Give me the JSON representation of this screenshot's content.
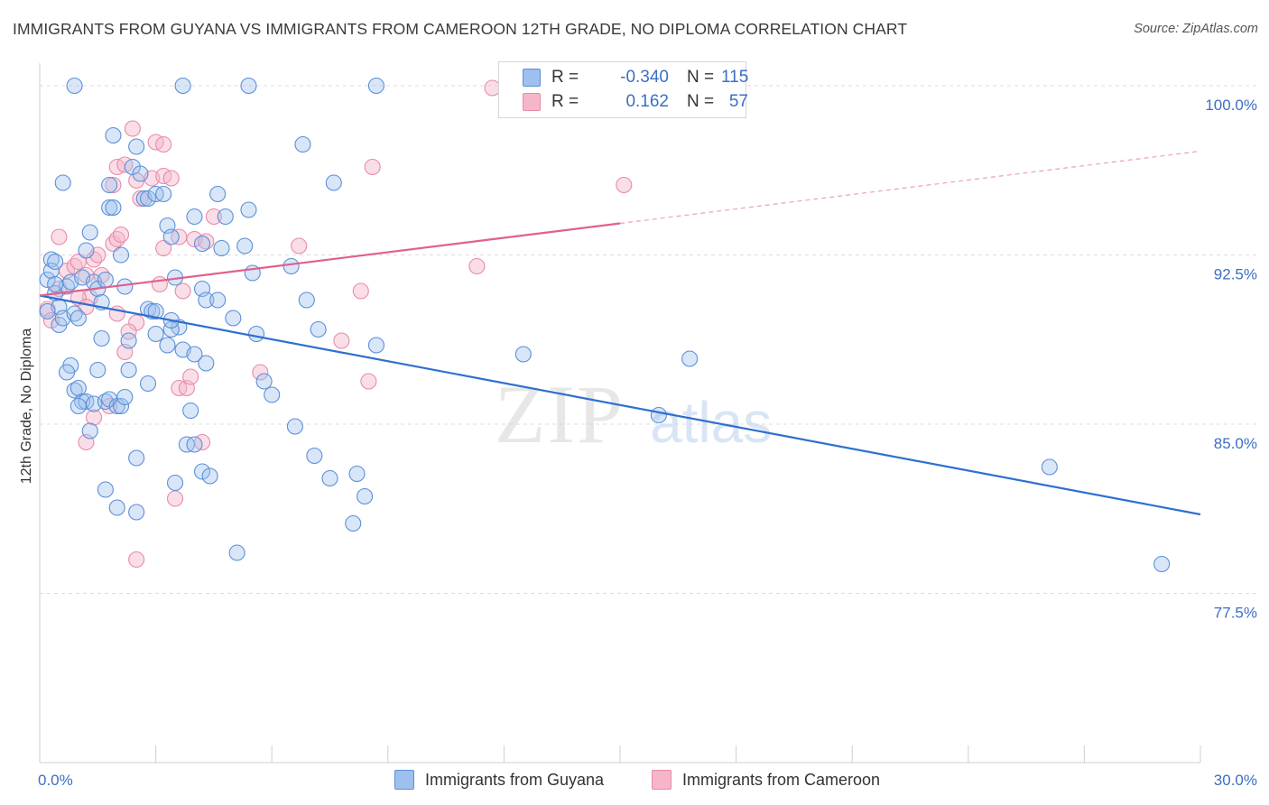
{
  "title": "IMMIGRANTS FROM GUYANA VS IMMIGRANTS FROM CAMEROON 12TH GRADE, NO DIPLOMA CORRELATION CHART",
  "source": "Source: ZipAtlas.com",
  "watermark": {
    "zip": "ZIP",
    "atlas": "atlas"
  },
  "colors": {
    "guyana_fill": "#9ec0ee",
    "guyana_stroke": "#5b8fd8",
    "guyana_line": "#2f6fcf",
    "cameroon_fill": "#f5b6c9",
    "cameroon_stroke": "#e98aa8",
    "cameroon_line": "#e0608a",
    "axis_text": "#3b6fc5",
    "grid": "#dcdcdc"
  },
  "legend": {
    "rows": [
      {
        "r_label": "R =",
        "r_value": "-0.340",
        "n_label": "N =",
        "n_value": "115"
      },
      {
        "r_label": "R =",
        "r_value": "0.162",
        "n_label": "N =",
        "n_value": "57"
      }
    ]
  },
  "bottom_legend": [
    "Immigrants from Guyana",
    "Immigrants from Cameroon"
  ],
  "chart_data": {
    "type": "scatter",
    "title": "IMMIGRANTS FROM GUYANA VS IMMIGRANTS FROM CAMEROON 12TH GRADE, NO DIPLOMA CORRELATION CHART",
    "xlabel": "",
    "ylabel": "12th Grade, No Diploma",
    "xlim": [
      0,
      30
    ],
    "ylim": [
      70,
      101
    ],
    "x_tick_labels": [
      "0.0%",
      "30.0%"
    ],
    "y_ticks": [
      77.5,
      85.0,
      92.5,
      100.0
    ],
    "y_tick_labels": [
      "77.5%",
      "85.0%",
      "92.5%",
      "100.0%"
    ],
    "grid": true,
    "legend_position": "top-center",
    "series": [
      {
        "name": "Immigrants from Guyana",
        "r": -0.34,
        "n": 115,
        "trend": {
          "x": [
            0,
            30
          ],
          "y": [
            90.7,
            81.0
          ]
        },
        "points": [
          [
            0.2,
            91.4
          ],
          [
            0.3,
            92.3
          ],
          [
            0.4,
            90.8
          ],
          [
            0.5,
            89.4
          ],
          [
            0.5,
            90.2
          ],
          [
            0.6,
            89.7
          ],
          [
            0.7,
            91.1
          ],
          [
            0.8,
            91.3
          ],
          [
            0.9,
            89.9
          ],
          [
            1.0,
            89.7
          ],
          [
            0.3,
            91.8
          ],
          [
            0.4,
            92.2
          ],
          [
            1.1,
            91.5
          ],
          [
            1.2,
            92.7
          ],
          [
            1.3,
            93.5
          ],
          [
            1.4,
            91.3
          ],
          [
            1.5,
            91.0
          ],
          [
            1.6,
            90.4
          ],
          [
            1.7,
            91.4
          ],
          [
            1.8,
            94.6
          ],
          [
            1.9,
            94.6
          ],
          [
            2.1,
            92.5
          ],
          [
            2.2,
            91.1
          ],
          [
            2.4,
            96.4
          ],
          [
            2.5,
            97.3
          ],
          [
            2.6,
            96.1
          ],
          [
            2.7,
            95.0
          ],
          [
            2.8,
            95.0
          ],
          [
            3.0,
            95.2
          ],
          [
            3.2,
            95.2
          ],
          [
            1.8,
            95.6
          ],
          [
            1.9,
            97.8
          ],
          [
            3.3,
            93.8
          ],
          [
            3.4,
            93.3
          ],
          [
            3.5,
            91.5
          ],
          [
            3.6,
            89.3
          ],
          [
            4.0,
            94.2
          ],
          [
            4.2,
            93.0
          ],
          [
            4.6,
            95.2
          ],
          [
            4.8,
            94.2
          ],
          [
            5.4,
            94.5
          ],
          [
            6.8,
            97.4
          ],
          [
            7.6,
            95.7
          ],
          [
            5.3,
            92.9
          ],
          [
            6.5,
            92.0
          ],
          [
            2.3,
            87.4
          ],
          [
            2.3,
            88.7
          ],
          [
            2.8,
            90.1
          ],
          [
            2.9,
            90.0
          ],
          [
            3.0,
            90.0
          ],
          [
            3.3,
            88.5
          ],
          [
            3.7,
            88.3
          ],
          [
            3.4,
            89.2
          ],
          [
            4.2,
            91.0
          ],
          [
            4.3,
            90.5
          ],
          [
            4.6,
            90.5
          ],
          [
            5.0,
            89.7
          ],
          [
            5.6,
            89.0
          ],
          [
            7.2,
            89.2
          ],
          [
            8.7,
            88.5
          ],
          [
            2.8,
            86.8
          ],
          [
            3.0,
            89.0
          ],
          [
            3.4,
            89.6
          ],
          [
            4.0,
            88.1
          ],
          [
            4.3,
            87.7
          ],
          [
            0.8,
            87.6
          ],
          [
            0.7,
            87.3
          ],
          [
            0.9,
            86.5
          ],
          [
            1.0,
            86.6
          ],
          [
            1.1,
            86.0
          ],
          [
            1.2,
            86.0
          ],
          [
            1.4,
            85.9
          ],
          [
            1.7,
            86.0
          ],
          [
            1.8,
            86.1
          ],
          [
            2.0,
            85.8
          ],
          [
            2.1,
            85.8
          ],
          [
            1.5,
            87.4
          ],
          [
            1.0,
            85.8
          ],
          [
            1.3,
            84.7
          ],
          [
            3.8,
            84.1
          ],
          [
            4.0,
            84.1
          ],
          [
            4.2,
            82.9
          ],
          [
            4.4,
            82.7
          ],
          [
            3.5,
            82.4
          ],
          [
            2.5,
            83.5
          ],
          [
            6.6,
            84.9
          ],
          [
            6.0,
            86.3
          ],
          [
            5.8,
            86.9
          ],
          [
            7.1,
            83.6
          ],
          [
            7.5,
            82.6
          ],
          [
            8.2,
            82.8
          ],
          [
            8.4,
            81.8
          ],
          [
            8.1,
            80.6
          ],
          [
            1.7,
            82.1
          ],
          [
            2.0,
            81.3
          ],
          [
            2.5,
            81.1
          ],
          [
            5.1,
            79.3
          ],
          [
            8.7,
            100.0
          ],
          [
            12.5,
            88.1
          ],
          [
            16.8,
            87.9
          ],
          [
            16.0,
            85.4
          ],
          [
            26.1,
            83.1
          ],
          [
            29.0,
            78.8
          ],
          [
            0.6,
            95.7
          ],
          [
            3.7,
            100.0
          ],
          [
            5.4,
            100.0
          ],
          [
            0.9,
            100.0
          ],
          [
            0.2,
            90.0
          ],
          [
            0.4,
            91.2
          ],
          [
            1.6,
            88.8
          ],
          [
            2.2,
            86.2
          ],
          [
            3.9,
            85.6
          ],
          [
            6.9,
            90.5
          ],
          [
            5.5,
            91.7
          ],
          [
            4.7,
            92.8
          ]
        ]
      },
      {
        "name": "Immigrants from Cameroon",
        "r": 0.162,
        "n": 57,
        "trend": {
          "x": [
            0,
            15
          ],
          "y": [
            90.7,
            93.9
          ]
        },
        "trend_dashed": {
          "x": [
            15,
            30
          ],
          "y": [
            93.9,
            97.1
          ]
        },
        "points": [
          [
            0.2,
            90.1
          ],
          [
            0.3,
            89.6
          ],
          [
            0.5,
            91.0
          ],
          [
            0.7,
            91.8
          ],
          [
            0.9,
            92.0
          ],
          [
            1.0,
            92.2
          ],
          [
            1.2,
            91.6
          ],
          [
            1.3,
            90.6
          ],
          [
            1.4,
            92.3
          ],
          [
            1.6,
            91.6
          ],
          [
            0.5,
            93.3
          ],
          [
            1.5,
            92.5
          ],
          [
            1.9,
            93.0
          ],
          [
            2.0,
            93.2
          ],
          [
            2.1,
            93.4
          ],
          [
            1.9,
            95.6
          ],
          [
            2.0,
            96.4
          ],
          [
            2.2,
            96.5
          ],
          [
            2.5,
            95.8
          ],
          [
            2.6,
            95.0
          ],
          [
            2.9,
            95.9
          ],
          [
            3.2,
            96.0
          ],
          [
            2.4,
            98.1
          ],
          [
            3.0,
            97.5
          ],
          [
            3.2,
            97.4
          ],
          [
            3.4,
            95.9
          ],
          [
            3.6,
            93.3
          ],
          [
            3.2,
            92.8
          ],
          [
            4.0,
            93.2
          ],
          [
            4.3,
            93.1
          ],
          [
            4.5,
            94.2
          ],
          [
            6.7,
            92.9
          ],
          [
            8.6,
            96.4
          ],
          [
            15.1,
            95.6
          ],
          [
            11.3,
            92.0
          ],
          [
            8.3,
            90.9
          ],
          [
            3.1,
            91.2
          ],
          [
            3.7,
            90.9
          ],
          [
            1.0,
            90.6
          ],
          [
            1.2,
            90.2
          ],
          [
            2.0,
            89.9
          ],
          [
            2.5,
            89.5
          ],
          [
            2.3,
            89.1
          ],
          [
            2.2,
            88.2
          ],
          [
            1.8,
            85.8
          ],
          [
            1.4,
            85.3
          ],
          [
            1.2,
            84.2
          ],
          [
            4.2,
            84.2
          ],
          [
            3.6,
            86.6
          ],
          [
            3.8,
            86.6
          ],
          [
            3.9,
            87.1
          ],
          [
            5.7,
            87.3
          ],
          [
            7.8,
            88.7
          ],
          [
            8.5,
            86.9
          ],
          [
            3.5,
            81.7
          ],
          [
            2.5,
            79.0
          ],
          [
            11.7,
            99.9
          ]
        ]
      }
    ]
  }
}
